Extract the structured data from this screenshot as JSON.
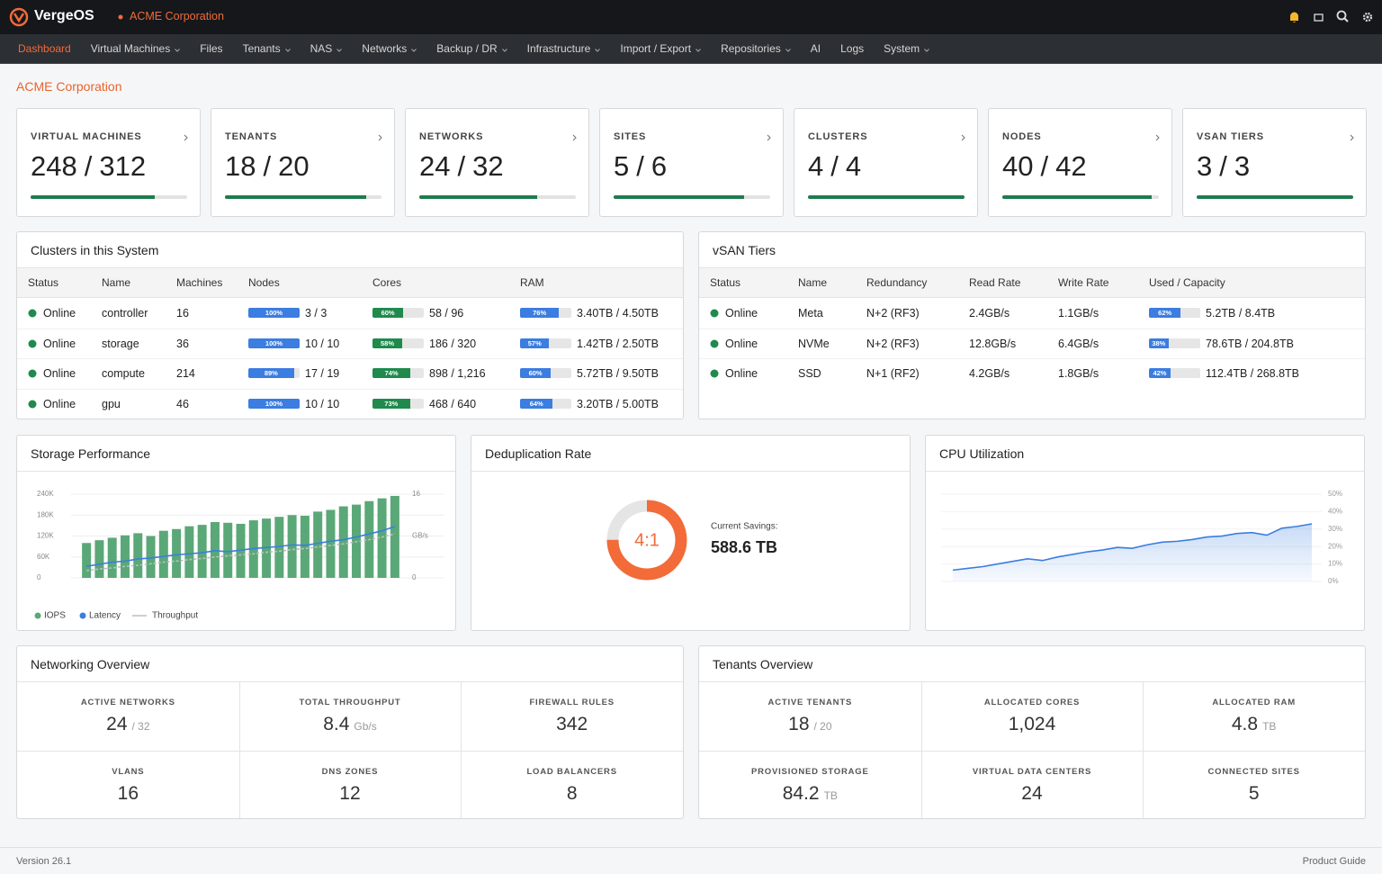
{
  "header": {
    "brand": "VergeOS",
    "org": "ACME Corporation"
  },
  "nav": {
    "active": 0,
    "items": [
      {
        "label": "Dashboard",
        "dropdown": false
      },
      {
        "label": "Virtual Machines",
        "dropdown": true
      },
      {
        "label": "Files",
        "dropdown": false
      },
      {
        "label": "Tenants",
        "dropdown": true
      },
      {
        "label": "NAS",
        "dropdown": true
      },
      {
        "label": "Networks",
        "dropdown": true
      },
      {
        "label": "Backup / DR",
        "dropdown": true
      },
      {
        "label": "Infrastructure",
        "dropdown": true
      },
      {
        "label": "Import / Export",
        "dropdown": true
      },
      {
        "label": "Repositories",
        "dropdown": true
      },
      {
        "label": "AI",
        "dropdown": false
      },
      {
        "label": "Logs",
        "dropdown": false
      },
      {
        "label": "System",
        "dropdown": true
      }
    ]
  },
  "page_title": "ACME Corporation",
  "summary_cards": [
    {
      "label": "VIRTUAL MACHINES",
      "used": 248,
      "separator": "/",
      "total": 312
    },
    {
      "label": "TENANTS",
      "used": 18,
      "separator": "/",
      "total": 20
    },
    {
      "label": "NETWORKS",
      "used": 24,
      "separator": "/",
      "total": 32
    },
    {
      "label": "SITES",
      "used": 5,
      "separator": "/",
      "total": 6
    },
    {
      "label": "CLUSTERS",
      "used": 4,
      "separator": "/",
      "total": 4
    },
    {
      "label": "NODES",
      "used": 40,
      "separator": "/",
      "total": 42
    },
    {
      "label": "VSAN TIERS",
      "used": 3,
      "separator": "/",
      "total": 3
    }
  ],
  "clusters": {
    "title": "Clusters in this System",
    "columns": [
      "Status",
      "Name",
      "Machines",
      "Nodes",
      "Cores",
      "RAM"
    ],
    "rows": [
      {
        "status": "Online",
        "name": "controller",
        "machines": 16,
        "nodes_pct": {
          "value": 100,
          "label": "100%"
        },
        "nodes": "3 / 3",
        "cores_pct": {
          "value": 60,
          "label": "60%"
        },
        "cores": "58 / 96",
        "ram_pct": {
          "value": 76,
          "label": "76%"
        },
        "ram": "3.40TB / 4.50TB"
      },
      {
        "status": "Online",
        "name": "storage",
        "machines": 36,
        "nodes_pct": {
          "value": 100,
          "label": "100%"
        },
        "nodes": "10 / 10",
        "cores_pct": {
          "value": 58,
          "label": "58%"
        },
        "cores": "186 / 320",
        "ram_pct": {
          "value": 57,
          "label": "57%"
        },
        "ram": "1.42TB / 2.50TB"
      },
      {
        "status": "Online",
        "name": "compute",
        "machines": 214,
        "nodes_pct": {
          "value": 89,
          "label": "89%"
        },
        "nodes": "17 / 19",
        "cores_pct": {
          "value": 74,
          "label": "74%"
        },
        "cores": "898 / 1,216",
        "ram_pct": {
          "value": 60,
          "label": "60%"
        },
        "ram": "5.72TB / 9.50TB"
      },
      {
        "status": "Online",
        "name": "gpu",
        "machines": 46,
        "nodes_pct": {
          "value": 100,
          "label": "100%"
        },
        "nodes": "10 / 10",
        "cores_pct": {
          "value": 73,
          "label": "73%"
        },
        "cores": "468 / 640",
        "ram_pct": {
          "value": 64,
          "label": "64%"
        },
        "ram": "3.20TB / 5.00TB"
      }
    ]
  },
  "vsan": {
    "title": "vSAN Tiers",
    "columns": [
      "Status",
      "Name",
      "Redundancy",
      "Read Rate",
      "Write Rate",
      "Used / Capacity"
    ],
    "rows": [
      {
        "status": "Online",
        "name": "Meta",
        "redundancy": "N+2 (RF3)",
        "read": "2.4GB/s",
        "write": "1.1GB/s",
        "used_pct": {
          "value": 62,
          "label": "62%"
        },
        "used": "5.2TB / 8.4TB"
      },
      {
        "status": "Online",
        "name": "NVMe",
        "redundancy": "N+2 (RF3)",
        "read": "12.8GB/s",
        "write": "6.4GB/s",
        "used_pct": {
          "value": 38,
          "label": "38%"
        },
        "used": "78.6TB / 204.8TB"
      },
      {
        "status": "Online",
        "name": "SSD",
        "redundancy": "N+1 (RF2)",
        "read": "4.2GB/s",
        "write": "1.8GB/s",
        "used_pct": {
          "value": 42,
          "label": "42%"
        },
        "used": "112.4TB / 268.8TB"
      }
    ]
  },
  "chart_data": [
    {
      "type": "combo",
      "title": "Storage Performance",
      "ylim": [
        0,
        240000
      ],
      "yticks": [
        0,
        {
          "value": 60000,
          "label": "60K"
        },
        {
          "value": 120000,
          "label": "120K"
        },
        {
          "value": 180000,
          "label": "180K"
        },
        {
          "value": 240000,
          "label": "240K"
        }
      ],
      "y2lim": [
        0,
        16
      ],
      "y2ticks": [
        0,
        16
      ],
      "y2label": "GB/s",
      "grid": true,
      "legend": "bottom-left",
      "series": [
        {
          "name": "IOPS",
          "type": "bar",
          "color": "#5aa877",
          "values": [
            100000,
            108000,
            115000,
            122000,
            128000,
            120000,
            135000,
            140000,
            148000,
            152000,
            160000,
            158000,
            155000,
            165000,
            170000,
            175000,
            180000,
            178000,
            190000,
            195000,
            205000,
            210000,
            220000,
            228000,
            235000
          ]
        },
        {
          "name": "Latency",
          "type": "line",
          "color": "#3b7de0",
          "axis": "y2",
          "dash": false,
          "values": [
            2.2,
            2.6,
            3.0,
            3.2,
            3.6,
            3.8,
            4.1,
            4.4,
            4.6,
            4.8,
            5.2,
            5.0,
            5.3,
            5.6,
            5.8,
            6.0,
            6.3,
            6.2,
            6.6,
            7.0,
            7.3,
            7.8,
            8.4,
            9.0,
            9.8
          ]
        },
        {
          "name": "Throughput",
          "type": "line",
          "color": "#bdbdbd",
          "axis": "y2",
          "dash": true,
          "values": [
            1.4,
            1.7,
            1.9,
            2.2,
            2.4,
            2.7,
            3.0,
            3.2,
            3.5,
            3.7,
            4.0,
            4.2,
            4.4,
            4.6,
            4.9,
            5.1,
            5.4,
            5.6,
            5.9,
            6.2,
            6.5,
            6.9,
            7.3,
            7.8,
            8.4
          ]
        }
      ]
    },
    {
      "type": "area",
      "title": "CPU Utilization",
      "ylim": [
        0,
        50
      ],
      "yticks": [
        {
          "value": 0,
          "label": "0%"
        },
        {
          "value": 10,
          "label": "10%"
        },
        {
          "value": 20,
          "label": "20%"
        },
        {
          "value": 30,
          "label": "30%"
        },
        {
          "value": 40,
          "label": "40%"
        },
        {
          "value": 50,
          "label": "50%"
        }
      ],
      "grid": true,
      "color": "#3b7de0",
      "values": [
        6.5,
        7.5,
        8.5,
        10,
        11.5,
        13,
        12,
        14,
        15.5,
        17,
        18,
        19.5,
        19,
        21,
        22.5,
        23,
        24,
        25.5,
        26,
        27.5,
        28,
        26.5,
        30.5,
        31.5,
        33
      ]
    }
  ],
  "deduplication": {
    "title": "Deduplication Rate",
    "ratio_label": "4:1",
    "arc_value": 75,
    "arc_max": 100,
    "savings_label": "Current Savings:",
    "savings": "588.6 TB",
    "color": "#f26b38"
  },
  "networking": {
    "title": "Networking Overview",
    "stats": [
      {
        "label": "ACTIVE NETWORKS",
        "value": 24,
        "unit": "/ 32"
      },
      {
        "label": "TOTAL THROUGHPUT",
        "value": 8.4,
        "unit": "Gb/s"
      },
      {
        "label": "FIREWALL RULES",
        "value": 342
      },
      {
        "label": "VLANS",
        "value": 16
      },
      {
        "label": "DNS ZONES",
        "value": 12
      },
      {
        "label": "LOAD BALANCERS",
        "value": 8
      }
    ]
  },
  "tenants": {
    "title": "Tenants Overview",
    "stats": [
      {
        "label": "ACTIVE TENANTS",
        "value": 18,
        "unit": "/ 20"
      },
      {
        "label": "ALLOCATED CORES",
        "value": "1,024"
      },
      {
        "label": "ALLOCATED RAM",
        "value": 4.8,
        "unit": "TB"
      },
      {
        "label": "PROVISIONED STORAGE",
        "value": 84.2,
        "unit": "TB"
      },
      {
        "label": "VIRTUAL DATA CENTERS",
        "value": 24
      },
      {
        "label": "CONNECTED SITES",
        "value": 5
      }
    ]
  },
  "footer": {
    "version": "Version 26.1",
    "guide": "Product Guide"
  }
}
